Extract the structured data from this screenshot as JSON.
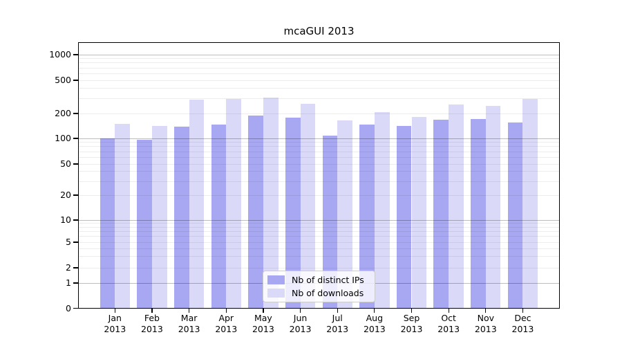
{
  "window": {
    "background": "#ffffff"
  },
  "chart_data": {
    "type": "bar",
    "title": "mcaGUI 2013",
    "categories": [
      "Jan",
      "Feb",
      "Mar",
      "Apr",
      "May",
      "Jun",
      "Jul",
      "Aug",
      "Sep",
      "Oct",
      "Nov",
      "Dec"
    ],
    "category_year": "2013",
    "series": [
      {
        "name": "Nb of distinct IPs",
        "color": "#a7a7f2",
        "values": [
          100,
          97,
          140,
          147,
          188,
          178,
          107,
          146,
          142,
          167,
          172,
          156
        ]
      },
      {
        "name": "Nb of downloads",
        "color": "#dadaf8",
        "values": [
          151,
          142,
          295,
          300,
          312,
          261,
          166,
          209,
          182,
          258,
          245,
          299
        ]
      }
    ],
    "y_ticks": [
      0,
      1,
      2,
      5,
      10,
      20,
      50,
      100,
      200,
      500,
      1000
    ],
    "y_scale": "log-like (1-2-5 tick sequence with 0 baseline)",
    "ylim": [
      0,
      1400
    ],
    "xlabel": "",
    "ylabel": "",
    "grid": true,
    "legend_position": "lower center",
    "colors": {
      "minor_gridline": "#ededed",
      "major_gridline": "#bfbfbf",
      "axis": "#000000",
      "text": "#000000"
    }
  }
}
